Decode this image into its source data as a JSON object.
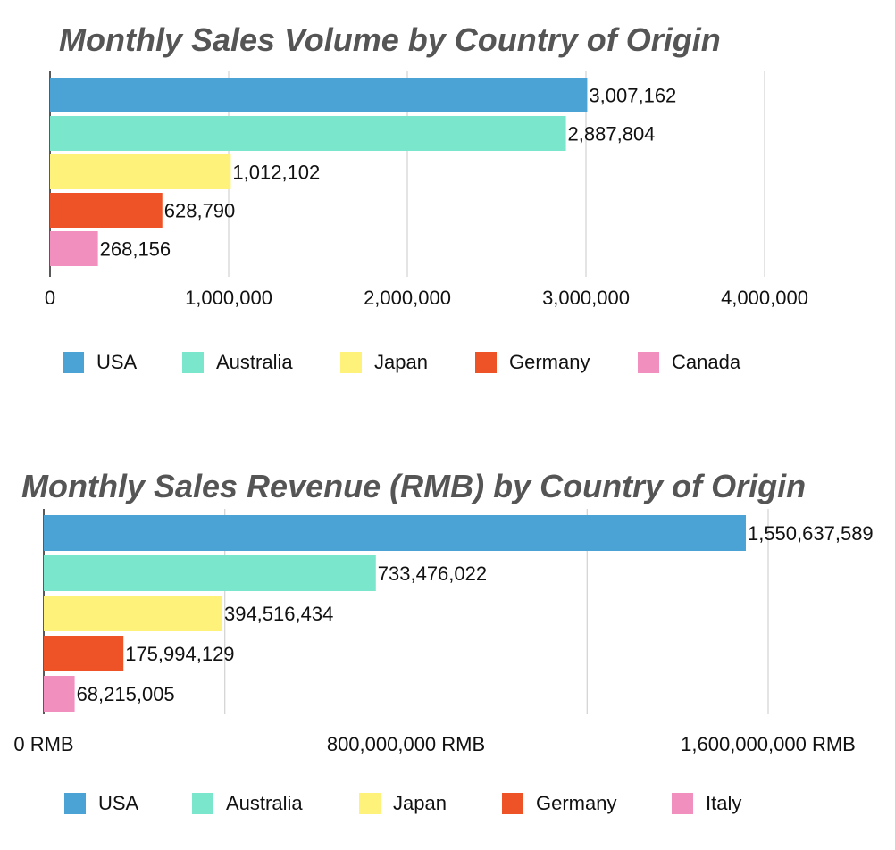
{
  "chart_data": [
    {
      "type": "bar",
      "orientation": "horizontal",
      "title": "Monthly Sales Volume by Country of Origin",
      "categories": [
        "USA",
        "Australia",
        "Japan",
        "Germany",
        "Canada"
      ],
      "values": [
        3007162,
        2887804,
        1012102,
        628790,
        268156
      ],
      "value_labels": [
        "3,007,162",
        "2,887,804",
        "1,012,102",
        "628,790",
        "268,156"
      ],
      "colors": [
        "#4aa3d4",
        "#7ae6cc",
        "#fff27a",
        "#ee5327",
        "#f190bf"
      ],
      "xlim": [
        0,
        4000000
      ],
      "xticks": [
        0,
        1000000,
        2000000,
        3000000,
        4000000
      ],
      "xtick_labels": [
        "0",
        "1,000,000",
        "2,000,000",
        "3,000,000",
        "4,000,000"
      ],
      "grid": true,
      "legend": [
        "USA",
        "Australia",
        "Japan",
        "Germany",
        "Canada"
      ],
      "legend_position": "bottom"
    },
    {
      "type": "bar",
      "orientation": "horizontal",
      "title": "Monthly Sales Revenue (RMB) by Country of Origin",
      "categories": [
        "USA",
        "Australia",
        "Japan",
        "Germany",
        "Italy"
      ],
      "values": [
        1550637589,
        733476022,
        394516434,
        175994129,
        68215005
      ],
      "value_labels": [
        "1,550,637,589",
        "733,476,022",
        "394,516,434",
        "175,994,129",
        "68,215,005"
      ],
      "colors": [
        "#4aa3d4",
        "#7ae6cc",
        "#fff27a",
        "#ee5327",
        "#f190bf"
      ],
      "xlim": [
        0,
        1600000000
      ],
      "xticks": [
        0,
        400000000,
        800000000,
        1200000000,
        1600000000
      ],
      "xtick_labels": [
        "0 RMB",
        "",
        "800,000,000 RMB",
        "",
        "1,600,000,000 RMB"
      ],
      "grid": true,
      "legend": [
        "USA",
        "Australia",
        "Japan",
        "Germany",
        "Italy"
      ],
      "legend_position": "bottom"
    }
  ]
}
